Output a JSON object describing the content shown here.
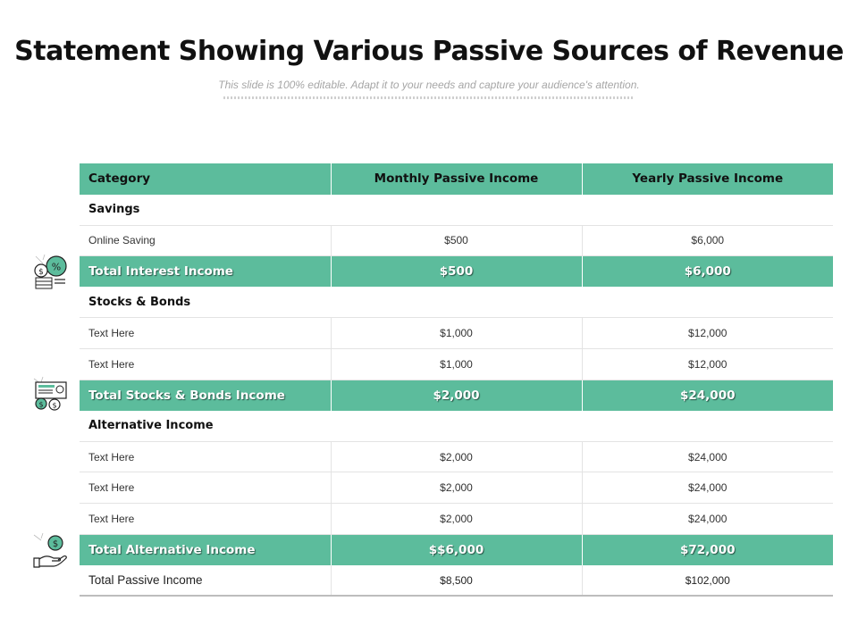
{
  "slide": {
    "title": "Statement Showing Various Passive Sources of Revenue",
    "subtitle": "This slide is 100% editable. Adapt it to your needs and capture your audience's attention."
  },
  "colors": {
    "accent": "#5cbc9c",
    "icon_stroke": "#222222"
  },
  "icons": [
    "money-percent-icon",
    "stock-certificate-dollar-icon",
    "hand-holding-coin-icon"
  ],
  "table": {
    "headers": [
      "Category",
      "Monthly Passive Income",
      "Yearly Passive Income"
    ],
    "savings": {
      "title": "Savings",
      "rows": [
        {
          "label": "Online Saving",
          "monthly": "$500",
          "yearly": "$6,000"
        }
      ],
      "total": {
        "label": "Total Interest Income",
        "monthly": "$500",
        "yearly": "$6,000"
      }
    },
    "stocks": {
      "title": "Stocks & Bonds",
      "rows": [
        {
          "label": "Text Here",
          "monthly": "$1,000",
          "yearly": "$12,000"
        },
        {
          "label": "Text Here",
          "monthly": "$1,000",
          "yearly": "$12,000"
        }
      ],
      "total": {
        "label": "Total Stocks & Bonds Income",
        "monthly": "$2,000",
        "yearly": "$24,000"
      }
    },
    "alternative": {
      "title": "Alternative Income",
      "rows": [
        {
          "label": "Text Here",
          "monthly": "$2,000",
          "yearly": "$24,000"
        },
        {
          "label": "Text Here",
          "monthly": "$2,000",
          "yearly": "$24,000"
        },
        {
          "label": "Text Here",
          "monthly": "$2,000",
          "yearly": "$24,000"
        }
      ],
      "total": {
        "label": "Total Alternative Income",
        "monthly": "$$6,000",
        "yearly": "$72,000"
      }
    },
    "grand_total": {
      "label": "Total Passive Income",
      "monthly": "$8,500",
      "yearly": "$102,000"
    }
  }
}
